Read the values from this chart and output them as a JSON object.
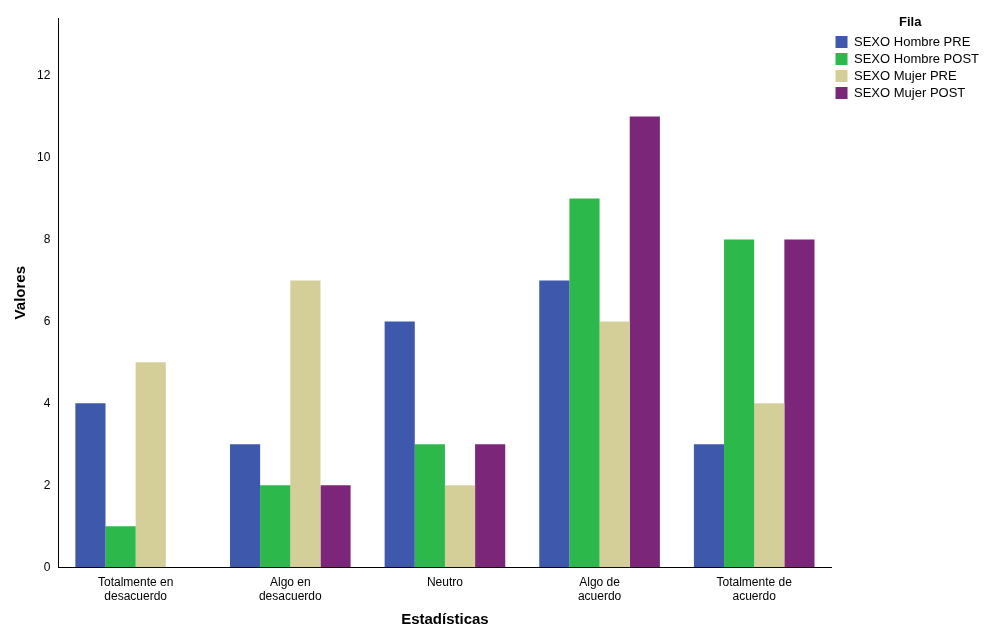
{
  "chart_data": {
    "type": "bar",
    "xlabel": "Estadísticas",
    "ylabel": "Valores",
    "legend_title": "Fila",
    "legend": "top right",
    "categories": [
      "Totalmente en desacuerdo",
      "Algo en desacuerdo",
      "Neutro",
      "Algo de acuerdo",
      "Totalmente de acuerdo"
    ],
    "series": [
      {
        "name": "SEXO Hombre PRE",
        "color": "#3e58ac",
        "values": [
          4,
          3,
          6,
          7,
          3
        ]
      },
      {
        "name": "SEXO Hombre POST",
        "color": "#2db84b",
        "values": [
          1,
          2,
          3,
          9,
          8
        ]
      },
      {
        "name": "SEXO Mujer PRE",
        "color": "#d4cf99",
        "values": [
          5,
          7,
          2,
          6,
          4
        ]
      },
      {
        "name": "SEXO Mujer POST",
        "color": "#7b2679",
        "values": [
          0,
          2,
          3,
          11,
          8
        ]
      }
    ],
    "ylim": [
      0,
      13.4
    ],
    "yticks": [
      0,
      2,
      4,
      6,
      8,
      10,
      12
    ],
    "grid": false
  }
}
